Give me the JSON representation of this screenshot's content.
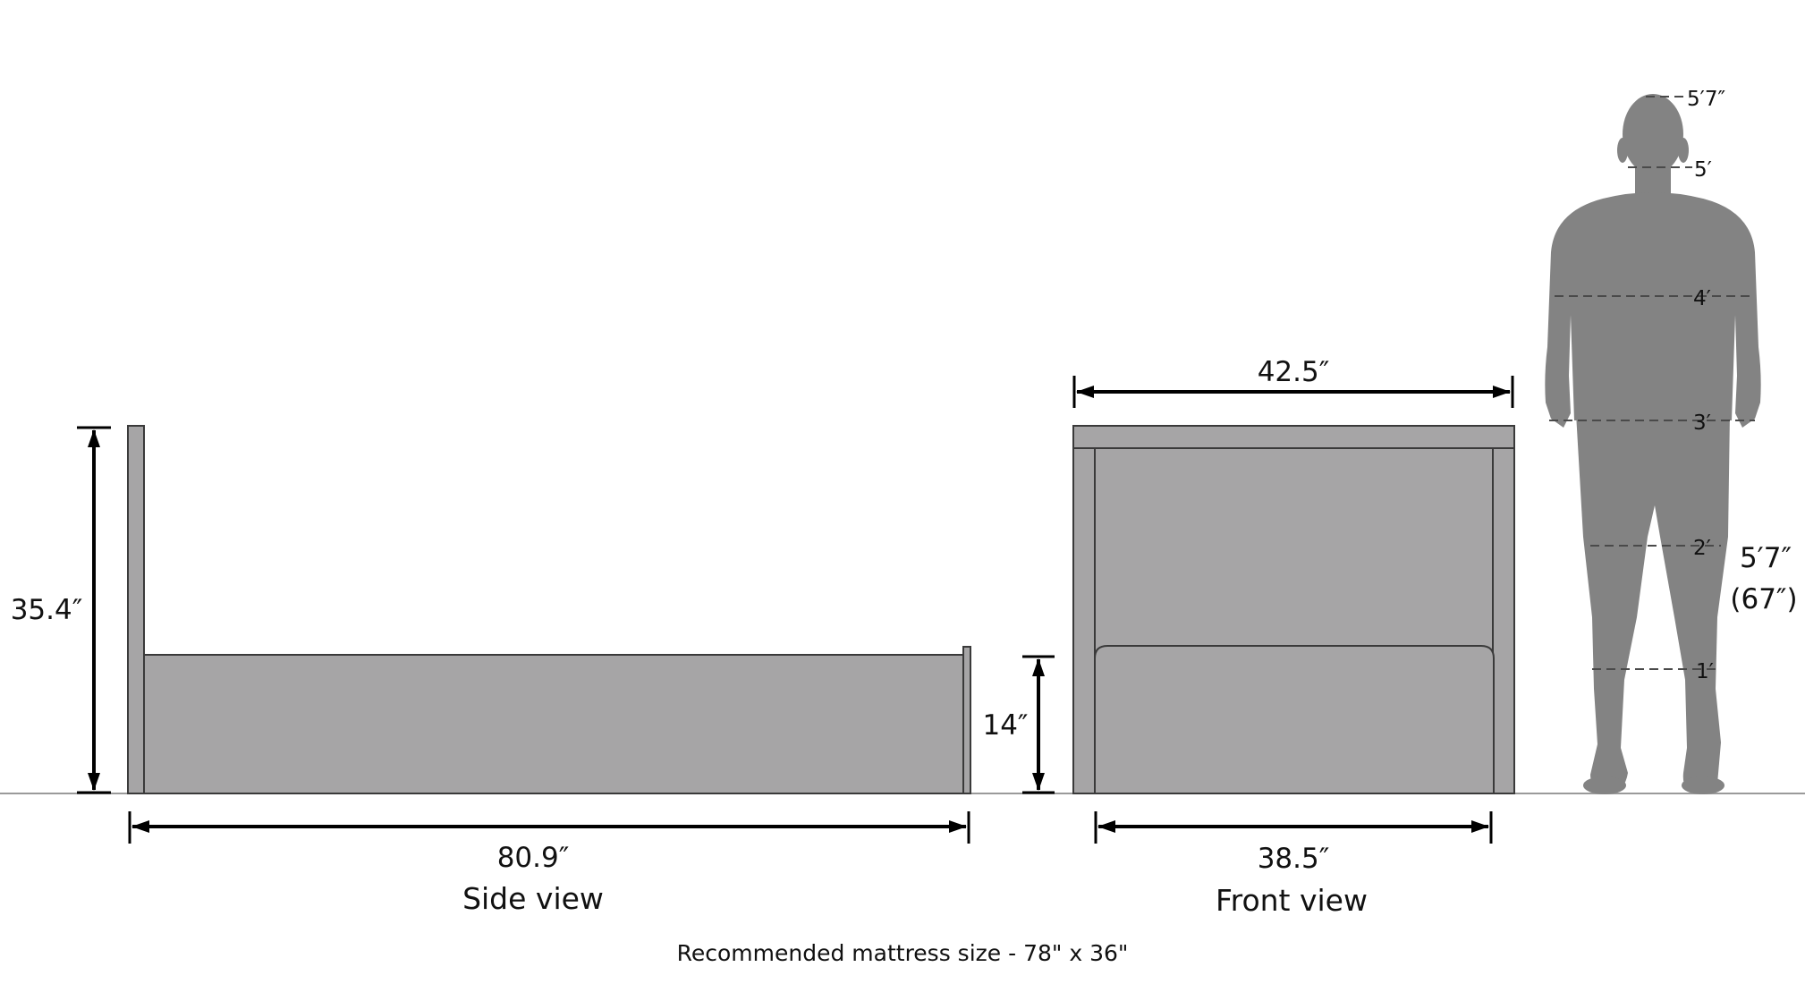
{
  "colors": {
    "panel": "#a6a5a6",
    "outline": "#3a3a3a",
    "person": "#838383",
    "floor": "#9a9a9a",
    "arrow": "#000000",
    "tick": "#4a4a4a"
  },
  "side_view": {
    "caption": "Side view",
    "height_label": "35.4″",
    "length_label": "80.9″"
  },
  "front_view": {
    "caption": "Front view",
    "width_top_label": "42.5″",
    "width_bottom_label": "38.5″",
    "seat_height_label": "14″"
  },
  "person": {
    "scale_marks": [
      "5′7″",
      "5′",
      "4′",
      "3′",
      "2′",
      "1′"
    ],
    "height_label": "5′7″",
    "height_inches_label": "(67″)"
  },
  "footnote": "Recommended mattress size - 78\" x 36\""
}
